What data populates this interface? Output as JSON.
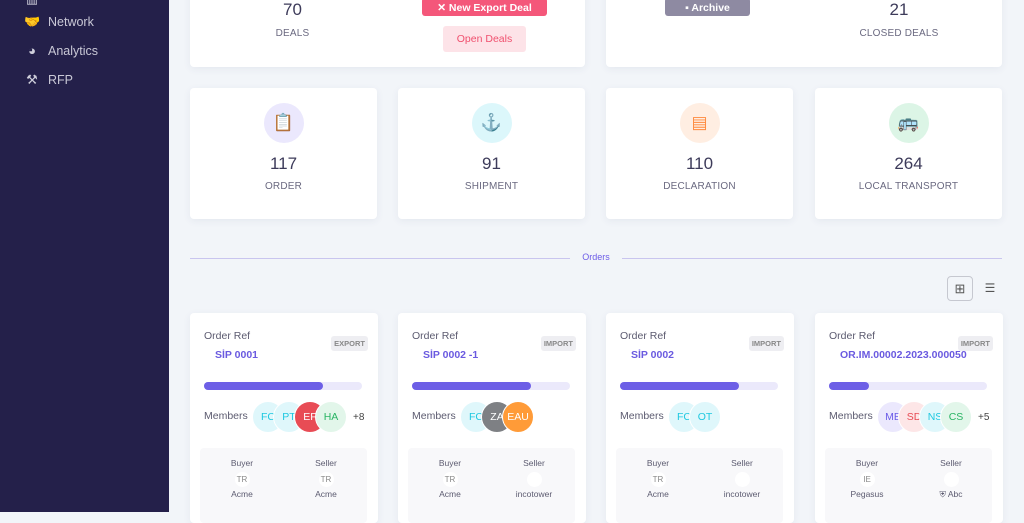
{
  "sidebar": {
    "items": [
      {
        "label": "",
        "icon": "chart-icon"
      },
      {
        "label": "Network",
        "icon": "handshake-icon"
      },
      {
        "label": "Analytics",
        "icon": "pie-chart-icon"
      },
      {
        "label": "RFP",
        "icon": "gavel-icon"
      }
    ]
  },
  "summary": {
    "deals_value": "70",
    "deals_label": "DEALS",
    "new_export_deal": "New Export Deal",
    "open_deals": "Open Deals",
    "archive": "Archive",
    "closed_value": "21",
    "closed_label": "CLOSED DEALS"
  },
  "stats": [
    {
      "value": "117",
      "label": "ORDER",
      "icon": "clipboard-icon",
      "color": "#6c5ce7",
      "bg": "#ebe8fd"
    },
    {
      "value": "91",
      "label": "SHIPMENT",
      "icon": "anchor-icon",
      "color": "#1ec8e0",
      "bg": "#dcf7fb"
    },
    {
      "value": "110",
      "label": "DECLARATION",
      "icon": "document-icon",
      "color": "#ff8a3d",
      "bg": "#ffeee2"
    },
    {
      "value": "264",
      "label": "LOCAL TRANSPORT",
      "icon": "bus-icon",
      "color": "#1fbf5f",
      "bg": "#dcf5e6"
    }
  ],
  "orders_section": {
    "title": "Orders"
  },
  "orders": [
    {
      "ref_label": "Order Ref",
      "ref": "SİP 0001",
      "type": "EXPORT",
      "progress": 0.75,
      "members_label": "Members",
      "members": [
        {
          "t": "FC",
          "c": "#1ec8e0",
          "bg": "#dff7fb"
        },
        {
          "t": "PT",
          "c": "#1ec8e0",
          "bg": "#dff7fb"
        },
        {
          "t": "EF",
          "c": "#fff",
          "bg": "#e84c55"
        },
        {
          "t": "HA",
          "c": "#28b463",
          "bg": "#e2f6ea"
        }
      ],
      "more": "+8",
      "buyer_label": "Buyer",
      "buyer_code": "TR",
      "buyer": "Acme",
      "seller_label": "Seller",
      "seller_code": "TR",
      "seller": "Acme"
    },
    {
      "ref_label": "Order Ref",
      "ref": "SİP 0002 -1",
      "type": "IMPORT",
      "progress": 0.75,
      "members_label": "Members",
      "members": [
        {
          "t": "FC",
          "c": "#1ec8e0",
          "bg": "#dff7fb"
        },
        {
          "t": "ZA",
          "c": "#fff",
          "bg": "#7e8084"
        },
        {
          "t": "EAU",
          "c": "#fff",
          "bg": "#ff9b38"
        }
      ],
      "more": "",
      "buyer_label": "Buyer",
      "buyer_code": "TR",
      "buyer": "Acme",
      "seller_label": "Seller",
      "seller_code": "",
      "seller": "incotower"
    },
    {
      "ref_label": "Order Ref",
      "ref": "SİP 0002",
      "type": "IMPORT",
      "progress": 0.75,
      "members_label": "Members",
      "members": [
        {
          "t": "FC",
          "c": "#1ec8e0",
          "bg": "#dff7fb"
        },
        {
          "t": "OT",
          "c": "#1ec8e0",
          "bg": "#dff7fb"
        }
      ],
      "more": "",
      "buyer_label": "Buyer",
      "buyer_code": "TR",
      "buyer": "Acme",
      "seller_label": "Seller",
      "seller_code": "",
      "seller": "incotower"
    },
    {
      "ref_label": "Order Ref",
      "ref": "OR.IM.00002.2023.000050",
      "type": "IMPORT",
      "progress": 0.25,
      "members_label": "Members",
      "members": [
        {
          "t": "MB",
          "c": "#6c5ce7",
          "bg": "#ebe8fd"
        },
        {
          "t": "SD",
          "c": "#e84c55",
          "bg": "#fde6e7"
        },
        {
          "t": "NS",
          "c": "#1ec8e0",
          "bg": "#dff7fb"
        },
        {
          "t": "CS",
          "c": "#28b463",
          "bg": "#e2f6ea"
        }
      ],
      "more": "+5",
      "buyer_label": "Buyer",
      "buyer_code": "IE",
      "buyer": "Pegasus",
      "seller_label": "Seller",
      "seller_code": "",
      "seller": "Abc"
    }
  ]
}
